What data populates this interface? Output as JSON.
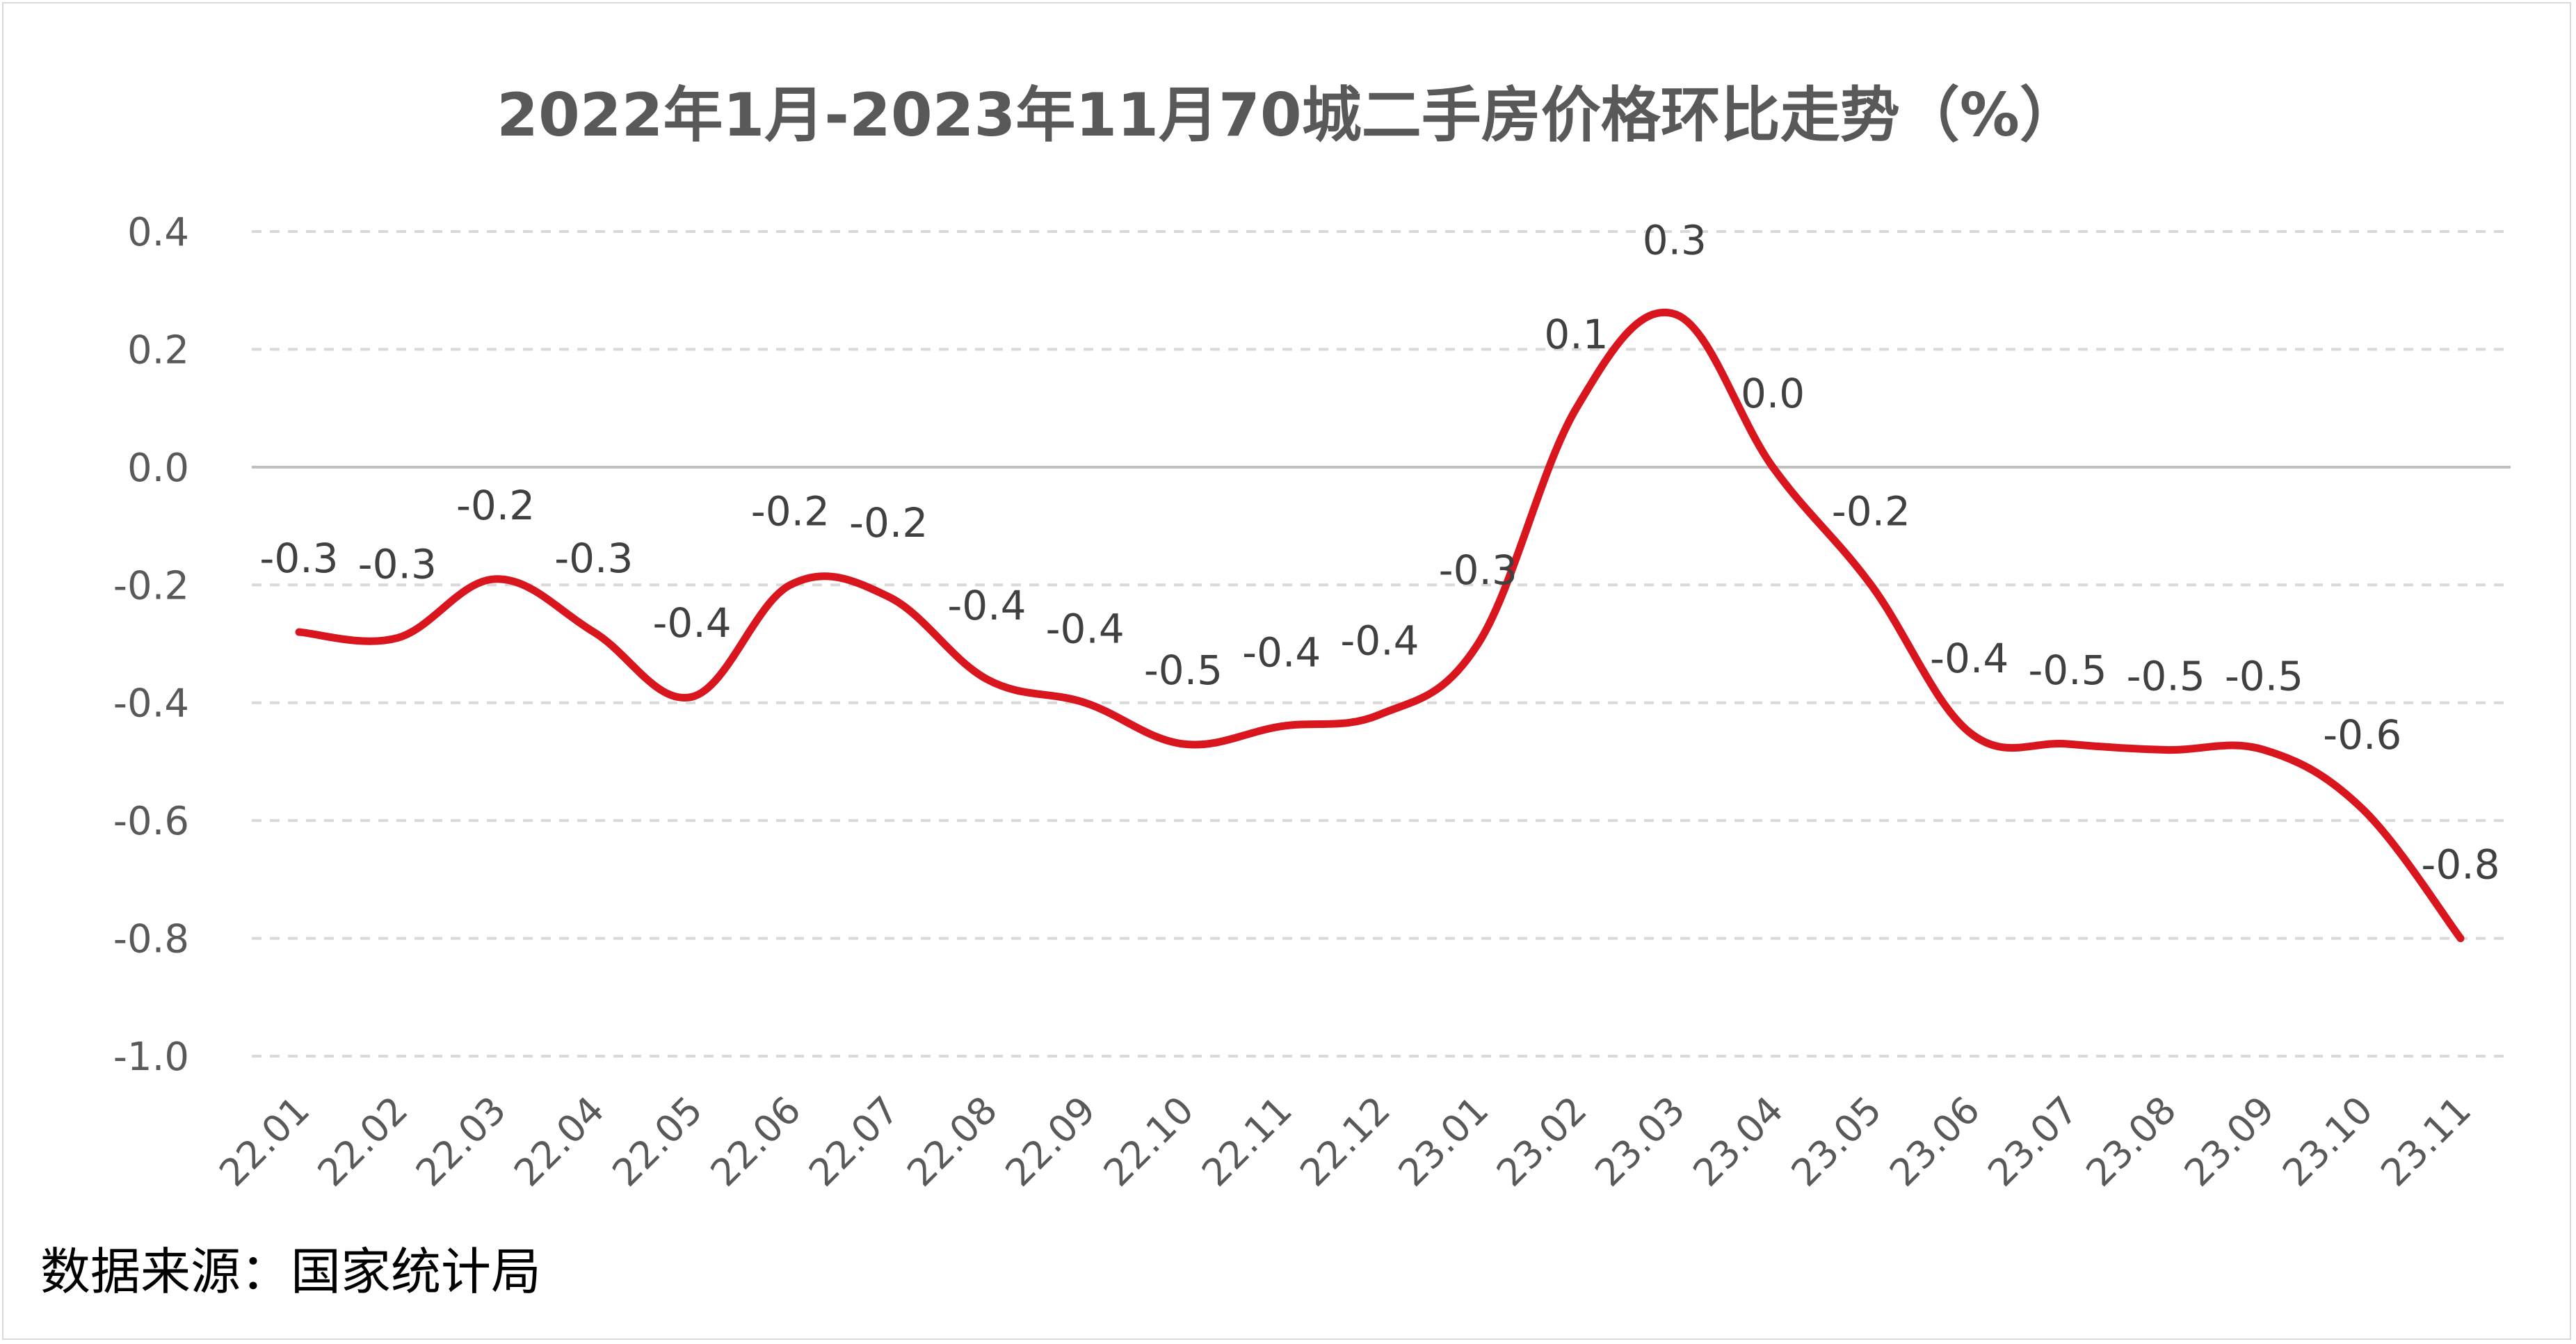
{
  "chart_data": {
    "type": "line",
    "title": "2022年1月-2023年11月70城二手房价格环比走势（%）",
    "source": "数据来源：国家统计局",
    "categories": [
      "22.01",
      "22.02",
      "22.03",
      "22.04",
      "22.05",
      "22.06",
      "22.07",
      "22.08",
      "22.09",
      "22.10",
      "22.11",
      "22.12",
      "23.01",
      "23.02",
      "23.03",
      "23.04",
      "23.05",
      "23.06",
      "23.07",
      "23.08",
      "23.09",
      "23.10",
      "23.11"
    ],
    "values": [
      -0.28,
      -0.29,
      -0.19,
      -0.28,
      -0.39,
      -0.2,
      -0.22,
      -0.36,
      -0.4,
      -0.47,
      -0.44,
      -0.42,
      -0.3,
      0.1,
      0.26,
      0.0,
      -0.2,
      -0.45,
      -0.47,
      -0.48,
      -0.48,
      -0.58,
      -0.8
    ],
    "data_labels": [
      "-0.3",
      "-0.3",
      "-0.2",
      "-0.3",
      "-0.4",
      "-0.2",
      "-0.2",
      "-0.4",
      "-0.4",
      "-0.5",
      "-0.4",
      "-0.4",
      "-0.3",
      "0.1",
      "0.3",
      "0.0",
      "-0.2",
      "-0.4",
      "-0.5",
      "-0.5",
      "-0.5",
      "-0.6",
      "-0.8"
    ],
    "y_ticks": [
      "0.4",
      "0.2",
      "0.0",
      "-0.2",
      "-0.4",
      "-0.6",
      "-0.8",
      "-1.0"
    ],
    "ylim": [
      -1.0,
      0.4
    ],
    "grid": true,
    "colors": {
      "line": "#d9151e",
      "grid": "#d9d9d9",
      "zero_line": "#bfbfbf"
    }
  }
}
